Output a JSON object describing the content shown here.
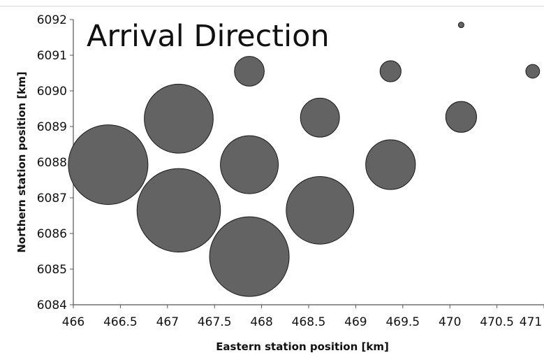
{
  "chart_data": {
    "type": "scatter",
    "title": "Arrival Direction",
    "xlabel": "Eastern station position [km]",
    "ylabel": "Northern station position [km]",
    "xlim": [
      466,
      471
    ],
    "ylim": [
      6084,
      6092
    ],
    "x_ticks": [
      "466",
      "466.5",
      "467",
      "467.5",
      "468",
      "468.5",
      "469",
      "469.5",
      "470",
      "470.5",
      "471"
    ],
    "y_ticks": [
      "6084",
      "6085",
      "6086",
      "6087",
      "6088",
      "6089",
      "6090",
      "6091",
      "6092"
    ],
    "grid": false,
    "bubble_color": "#636363",
    "points": [
      {
        "x": 466.37,
        "y": 6087.93,
        "size": 1.0
      },
      {
        "x": 467.12,
        "y": 6086.65,
        "size": 1.1
      },
      {
        "x": 467.12,
        "y": 6089.22,
        "size": 0.75
      },
      {
        "x": 467.87,
        "y": 6085.35,
        "size": 1.0
      },
      {
        "x": 467.87,
        "y": 6087.93,
        "size": 0.53
      },
      {
        "x": 467.87,
        "y": 6090.55,
        "size": 0.14
      },
      {
        "x": 468.62,
        "y": 6086.65,
        "size": 0.72
      },
      {
        "x": 468.62,
        "y": 6089.25,
        "size": 0.24
      },
      {
        "x": 469.37,
        "y": 6087.93,
        "size": 0.39
      },
      {
        "x": 469.37,
        "y": 6090.55,
        "size": 0.07
      },
      {
        "x": 470.12,
        "y": 6089.27,
        "size": 0.15
      },
      {
        "x": 470.12,
        "y": 6091.85,
        "size": 0.005
      },
      {
        "x": 470.88,
        "y": 6090.55,
        "size": 0.03
      }
    ]
  }
}
